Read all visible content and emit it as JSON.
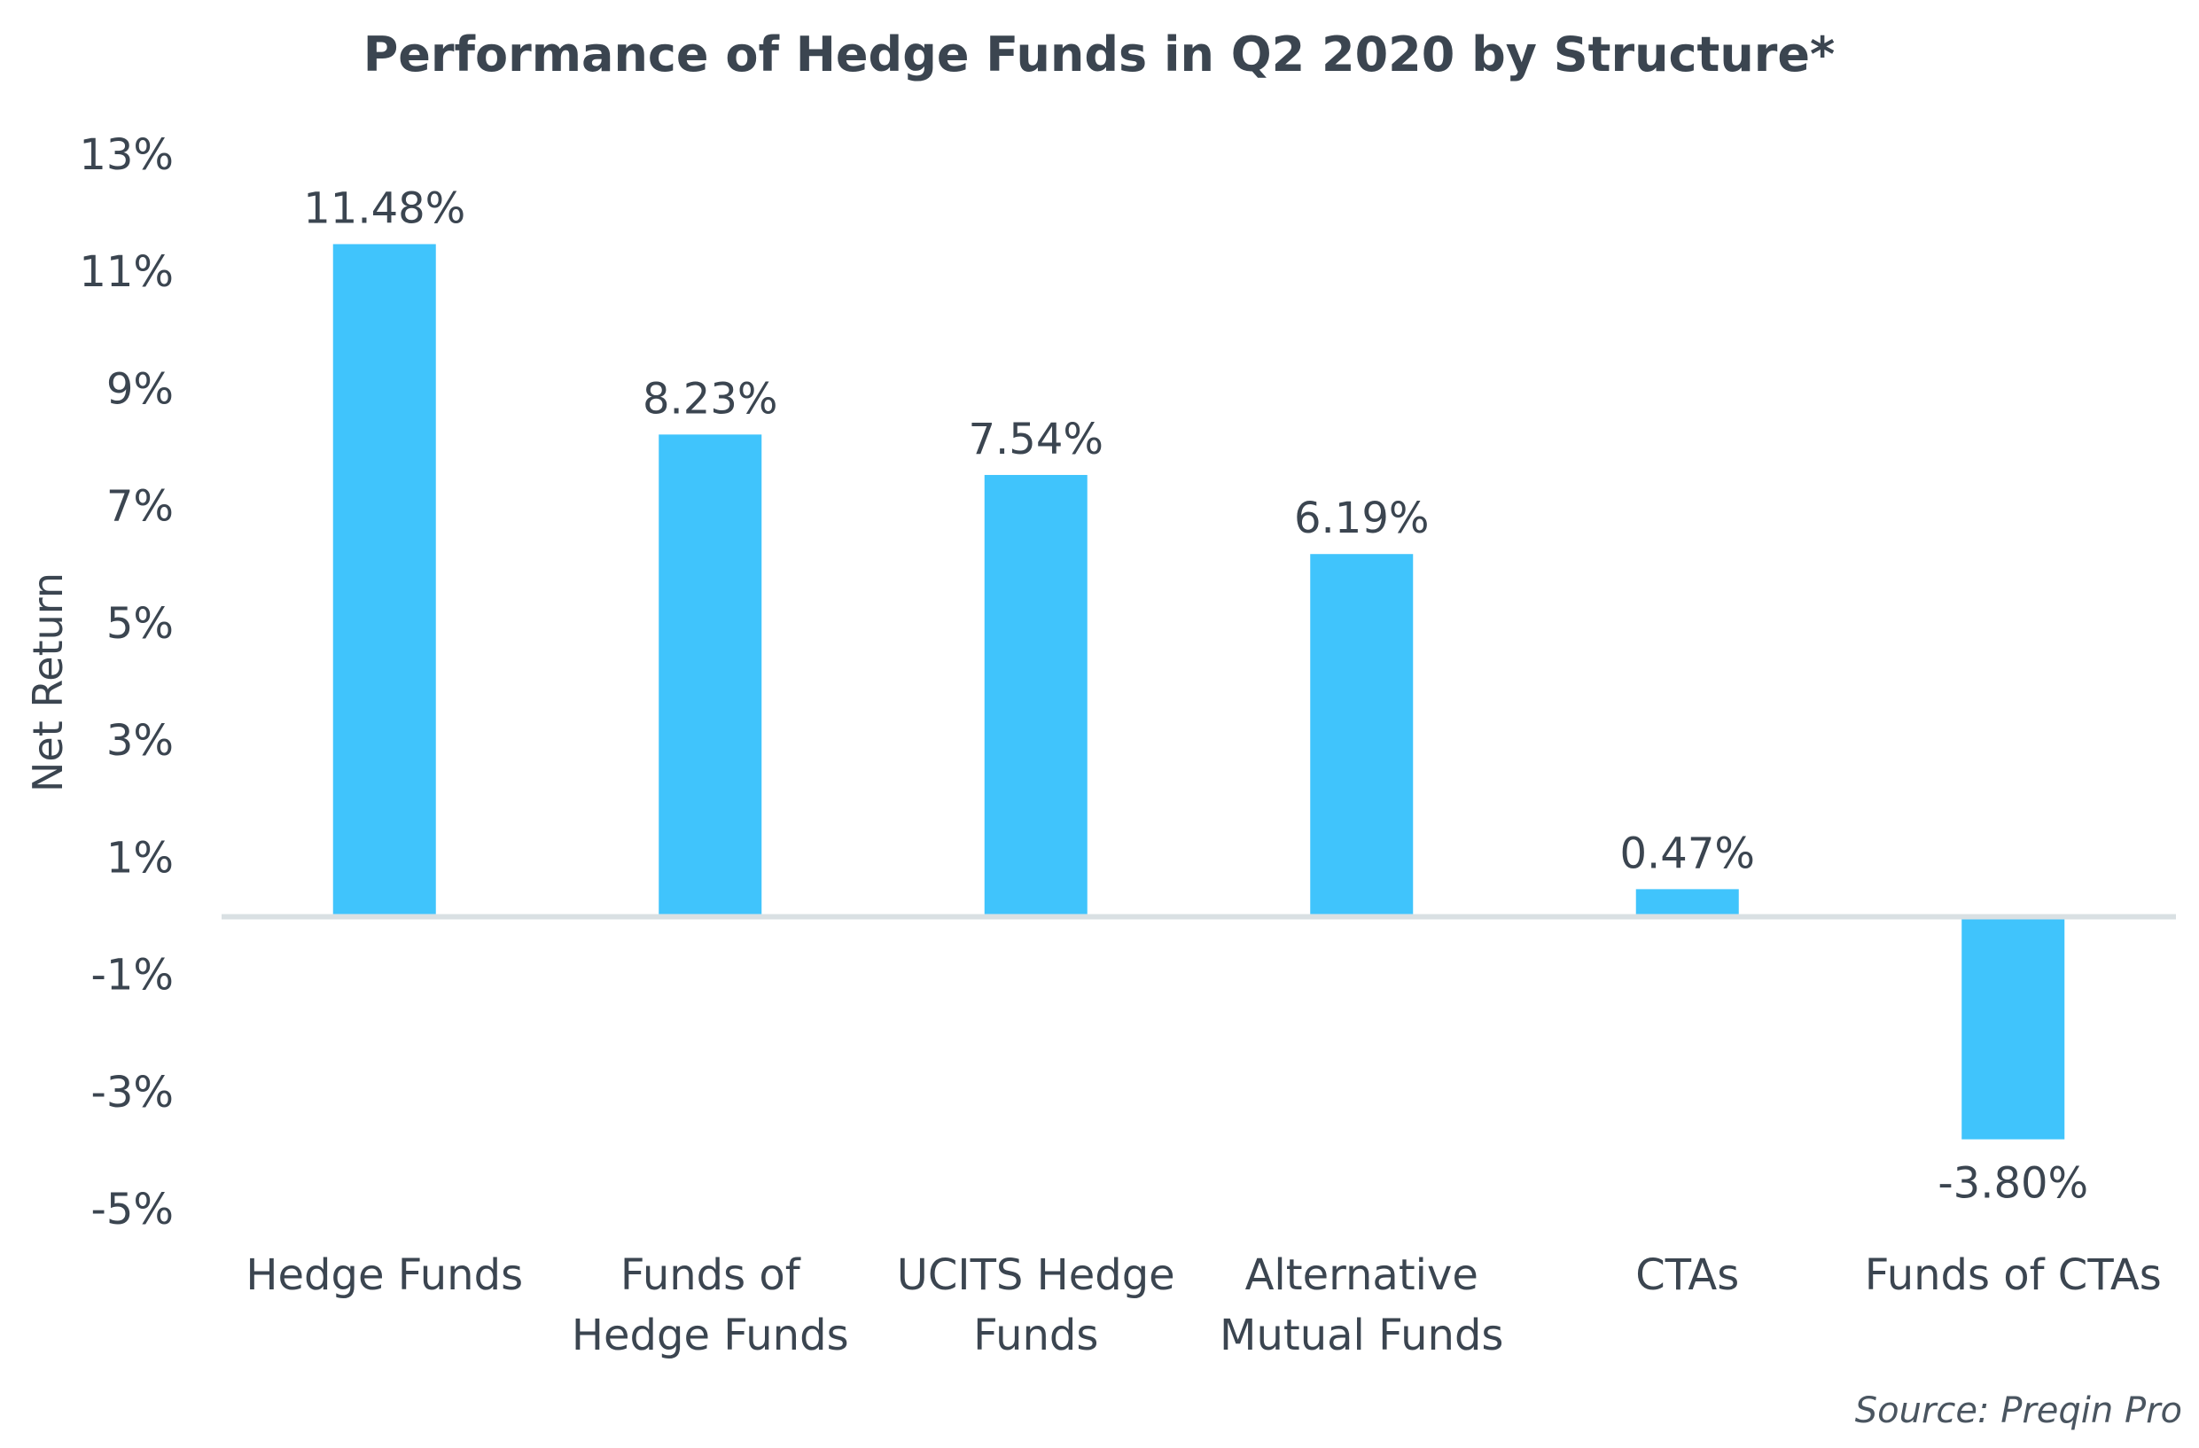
{
  "chart_data": {
    "type": "bar",
    "title": "Performance of Hedge Funds in Q2 2020 by Structure*",
    "xlabel": "",
    "ylabel": "Net Return",
    "ylim": [
      -5,
      13
    ],
    "yticks": [
      13,
      11,
      9,
      7,
      5,
      3,
      1,
      -1,
      -3,
      -5
    ],
    "ytick_labels": [
      "13%",
      "11%",
      "9%",
      "7%",
      "5%",
      "3%",
      "1%",
      "-1%",
      "-3%",
      "-5%"
    ],
    "categories": [
      [
        "Hedge Funds"
      ],
      [
        "Funds of",
        "Hedge Funds"
      ],
      [
        "UCITS Hedge",
        "Funds"
      ],
      [
        "Alternative",
        "Mutual Funds"
      ],
      [
        "CTAs"
      ],
      [
        "Funds of CTAs"
      ]
    ],
    "values": [
      11.48,
      8.23,
      7.54,
      6.19,
      0.47,
      -3.8
    ],
    "data_labels": [
      "11.48%",
      "8.23%",
      "7.54%",
      "6.19%",
      "0.47%",
      "-3.80%"
    ],
    "bar_color": "#40c4fc",
    "zero_line_color": "#d9e0e3",
    "text_color": "#3b4550",
    "grid": false,
    "legend": "none",
    "source": "Source: Preqin Pro"
  }
}
